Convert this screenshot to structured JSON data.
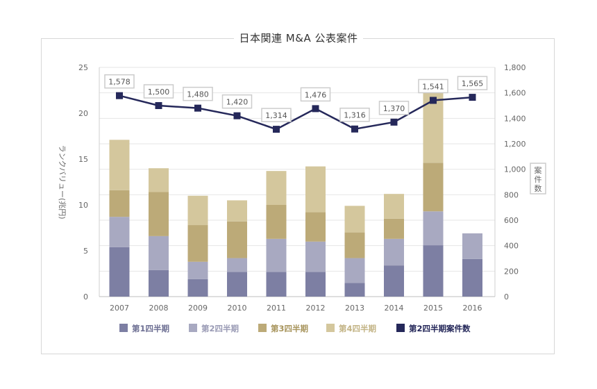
{
  "chart_data": {
    "type": "bar+line",
    "title": "日本関連 M&A 公表案件",
    "categories": [
      "2007",
      "2008",
      "2009",
      "2010",
      "2011",
      "2012",
      "2013",
      "2014",
      "2015",
      "2016"
    ],
    "stack_series": [
      {
        "name": "第1四半期",
        "color": "#7d7fa3",
        "values": [
          5.4,
          2.9,
          1.9,
          2.7,
          2.7,
          2.7,
          1.5,
          3.4,
          5.6,
          4.1
        ]
      },
      {
        "name": "第2四半期",
        "color": "#a8a9c1",
        "values": [
          3.3,
          3.7,
          1.9,
          1.5,
          3.6,
          3.3,
          2.7,
          2.9,
          3.7,
          2.8
        ]
      },
      {
        "name": "第3四半期",
        "color": "#bcaa78",
        "values": [
          2.9,
          4.8,
          4.0,
          4.0,
          3.7,
          3.2,
          2.8,
          2.2,
          5.3,
          0
        ]
      },
      {
        "name": "第4四半期",
        "color": "#d4c79d",
        "values": [
          5.5,
          2.6,
          3.2,
          2.3,
          3.7,
          5.0,
          2.9,
          2.7,
          7.6,
          0
        ]
      }
    ],
    "line_series": {
      "name": "第2四半期案件数",
      "color": "#25285a",
      "values": [
        1578,
        1500,
        1480,
        1420,
        1314,
        1476,
        1316,
        1370,
        1541,
        1565
      ],
      "labels": [
        "1,578",
        "1,500",
        "1,480",
        "1,420",
        "1,314",
        "1,476",
        "1,316",
        "1,370",
        "1,541",
        "1,565"
      ]
    },
    "ylabel_left": "ランクバリュー(兆円)",
    "ylabel_right": "案件数",
    "ylim_left": [
      0,
      25
    ],
    "ylim_right": [
      0,
      1800
    ],
    "yticks_left": [
      "0",
      "5",
      "10",
      "15",
      "20",
      "25"
    ],
    "yticks_right": [
      "0",
      "200",
      "400",
      "600",
      "800",
      "1,000",
      "1,200",
      "1,400",
      "1,600",
      "1,800"
    ],
    "grid": true,
    "legend_position": "bottom"
  }
}
